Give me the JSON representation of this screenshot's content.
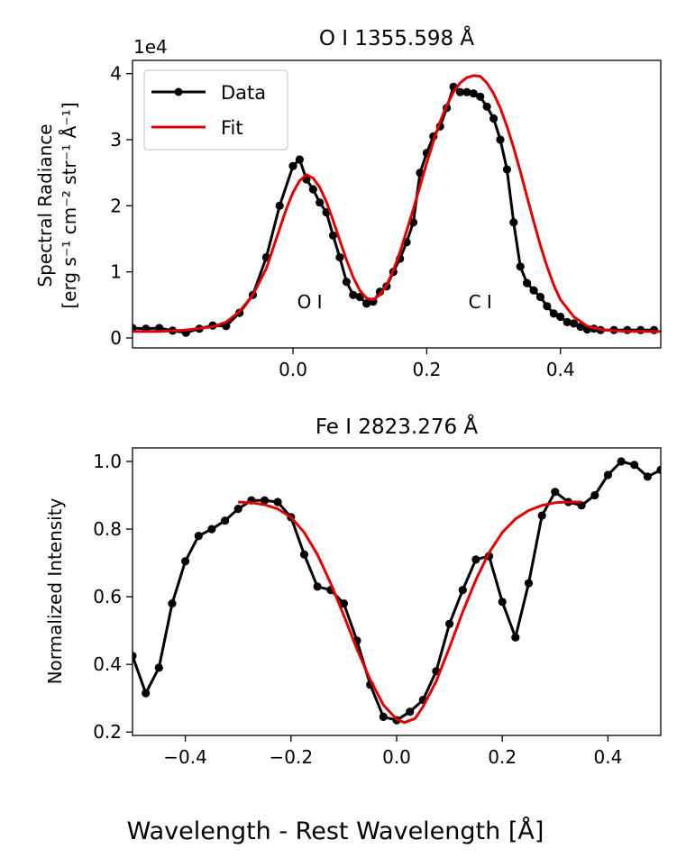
{
  "figure": {
    "shared_xlabel": "Wavelength - Rest Wavelength [Å]"
  },
  "colors": {
    "data": "#000000",
    "fit": "#e00000",
    "axes": "#000000"
  },
  "chart_data": [
    {
      "type": "line",
      "title": "O I 1355.598 Å",
      "ylabel_line1": "Spectral Radiance",
      "ylabel_line2": "[erg s⁻¹ cm⁻² str⁻¹ Å⁻¹]",
      "offset_text": "1e4",
      "xlim": [
        -0.24,
        0.55
      ],
      "ylim": [
        -0.15,
        4.2
      ],
      "x_ticks": [
        0.0,
        0.2,
        0.4
      ],
      "x_tick_labels": [
        "0.0",
        "0.2",
        "0.4"
      ],
      "y_ticks": [
        0,
        1,
        2,
        3,
        4
      ],
      "y_tick_labels": [
        "0",
        "1",
        "2",
        "3",
        "4"
      ],
      "legend": {
        "position": "top-left",
        "entries": [
          "Data",
          "Fit"
        ]
      },
      "annotations": [
        {
          "text": "O I",
          "x": 0.025,
          "y": 0.45
        },
        {
          "text": "C I",
          "x": 0.28,
          "y": 0.45
        }
      ],
      "series": [
        {
          "name": "Data",
          "x": [
            -0.24,
            -0.22,
            -0.2,
            -0.18,
            -0.16,
            -0.14,
            -0.12,
            -0.1,
            -0.08,
            -0.06,
            -0.04,
            -0.02,
            0.0,
            0.01,
            0.02,
            0.03,
            0.04,
            0.05,
            0.06,
            0.07,
            0.08,
            0.09,
            0.1,
            0.11,
            0.12,
            0.13,
            0.14,
            0.15,
            0.16,
            0.17,
            0.18,
            0.19,
            0.2,
            0.21,
            0.22,
            0.23,
            0.24,
            0.25,
            0.26,
            0.27,
            0.28,
            0.29,
            0.3,
            0.31,
            0.32,
            0.33,
            0.34,
            0.35,
            0.36,
            0.37,
            0.38,
            0.39,
            0.4,
            0.41,
            0.42,
            0.43,
            0.44,
            0.45,
            0.46,
            0.48,
            0.5,
            0.52,
            0.54
          ],
          "values": [
            0.15,
            0.14,
            0.15,
            0.11,
            0.08,
            0.14,
            0.19,
            0.18,
            0.38,
            0.65,
            1.22,
            2.0,
            2.6,
            2.7,
            2.4,
            2.25,
            2.05,
            1.9,
            1.55,
            1.22,
            0.85,
            0.65,
            0.62,
            0.52,
            0.55,
            0.7,
            0.78,
            1.0,
            1.2,
            1.45,
            1.75,
            2.5,
            2.8,
            3.05,
            3.2,
            3.48,
            3.8,
            3.72,
            3.72,
            3.7,
            3.65,
            3.5,
            3.32,
            3.0,
            2.55,
            1.75,
            1.08,
            0.83,
            0.72,
            0.62,
            0.48,
            0.37,
            0.32,
            0.24,
            0.22,
            0.17,
            0.13,
            0.14,
            0.12,
            0.12,
            0.12,
            0.12,
            0.12
          ]
        },
        {
          "name": "Fit",
          "x": [
            -0.24,
            -0.2,
            -0.16,
            -0.12,
            -0.1,
            -0.08,
            -0.06,
            -0.04,
            -0.03,
            -0.02,
            -0.01,
            0.0,
            0.01,
            0.02,
            0.03,
            0.04,
            0.05,
            0.06,
            0.07,
            0.08,
            0.09,
            0.1,
            0.11,
            0.12,
            0.13,
            0.14,
            0.15,
            0.16,
            0.17,
            0.18,
            0.19,
            0.2,
            0.21,
            0.22,
            0.23,
            0.24,
            0.25,
            0.26,
            0.27,
            0.28,
            0.29,
            0.3,
            0.31,
            0.32,
            0.33,
            0.34,
            0.35,
            0.36,
            0.37,
            0.38,
            0.39,
            0.4,
            0.42,
            0.44,
            0.46,
            0.48,
            0.5,
            0.55
          ],
          "values": [
            0.1,
            0.1,
            0.12,
            0.17,
            0.24,
            0.4,
            0.65,
            1.05,
            1.35,
            1.65,
            1.95,
            2.2,
            2.38,
            2.47,
            2.42,
            2.28,
            2.06,
            1.78,
            1.48,
            1.18,
            0.92,
            0.72,
            0.6,
            0.58,
            0.65,
            0.8,
            1.02,
            1.3,
            1.62,
            1.95,
            2.3,
            2.65,
            2.97,
            3.27,
            3.52,
            3.72,
            3.86,
            3.94,
            3.97,
            3.96,
            3.86,
            3.7,
            3.48,
            3.2,
            2.88,
            2.52,
            2.14,
            1.76,
            1.4,
            1.08,
            0.8,
            0.58,
            0.32,
            0.18,
            0.13,
            0.11,
            0.1,
            0.1
          ]
        }
      ]
    },
    {
      "type": "line",
      "title": "Fe I 2823.276 Å",
      "ylabel": "Normalized Intensity",
      "xlim": [
        -0.5,
        0.5
      ],
      "ylim": [
        0.19,
        1.04
      ],
      "x_ticks": [
        -0.4,
        -0.2,
        0.0,
        0.2,
        0.4
      ],
      "x_tick_labels": [
        "−0.4",
        "−0.2",
        "0.0",
        "0.2",
        "0.4"
      ],
      "y_ticks": [
        0.2,
        0.4,
        0.6,
        0.8,
        1.0
      ],
      "y_tick_labels": [
        "0.2",
        "0.4",
        "0.6",
        "0.8",
        "1.0"
      ],
      "series": [
        {
          "name": "Data",
          "x": [
            -0.5,
            -0.475,
            -0.45,
            -0.425,
            -0.4,
            -0.375,
            -0.35,
            -0.325,
            -0.3,
            -0.275,
            -0.25,
            -0.225,
            -0.2,
            -0.175,
            -0.15,
            -0.125,
            -0.1,
            -0.075,
            -0.05,
            -0.025,
            0.0,
            0.025,
            0.05,
            0.075,
            0.1,
            0.125,
            0.15,
            0.175,
            0.2,
            0.225,
            0.25,
            0.275,
            0.3,
            0.325,
            0.35,
            0.375,
            0.4,
            0.425,
            0.45,
            0.475,
            0.5
          ],
          "values": [
            0.425,
            0.315,
            0.39,
            0.58,
            0.705,
            0.78,
            0.8,
            0.825,
            0.86,
            0.885,
            0.885,
            0.88,
            0.835,
            0.725,
            0.63,
            0.62,
            0.58,
            0.47,
            0.34,
            0.245,
            0.235,
            0.26,
            0.295,
            0.38,
            0.52,
            0.62,
            0.71,
            0.72,
            0.585,
            0.48,
            0.64,
            0.84,
            0.91,
            0.88,
            0.87,
            0.9,
            0.96,
            1.0,
            0.99,
            0.955,
            0.975
          ]
        },
        {
          "name": "Fit",
          "x": [
            -0.3,
            -0.275,
            -0.25,
            -0.225,
            -0.2,
            -0.175,
            -0.15,
            -0.125,
            -0.1,
            -0.075,
            -0.05,
            -0.025,
            0.0,
            0.015,
            0.035,
            0.05,
            0.075,
            0.1,
            0.125,
            0.15,
            0.175,
            0.2,
            0.225,
            0.25,
            0.275,
            0.3,
            0.325,
            0.35
          ],
          "values": [
            0.88,
            0.878,
            0.872,
            0.86,
            0.835,
            0.79,
            0.725,
            0.64,
            0.545,
            0.445,
            0.355,
            0.28,
            0.238,
            0.228,
            0.24,
            0.275,
            0.35,
            0.45,
            0.555,
            0.65,
            0.73,
            0.79,
            0.83,
            0.855,
            0.87,
            0.878,
            0.88,
            0.88
          ]
        }
      ]
    }
  ]
}
